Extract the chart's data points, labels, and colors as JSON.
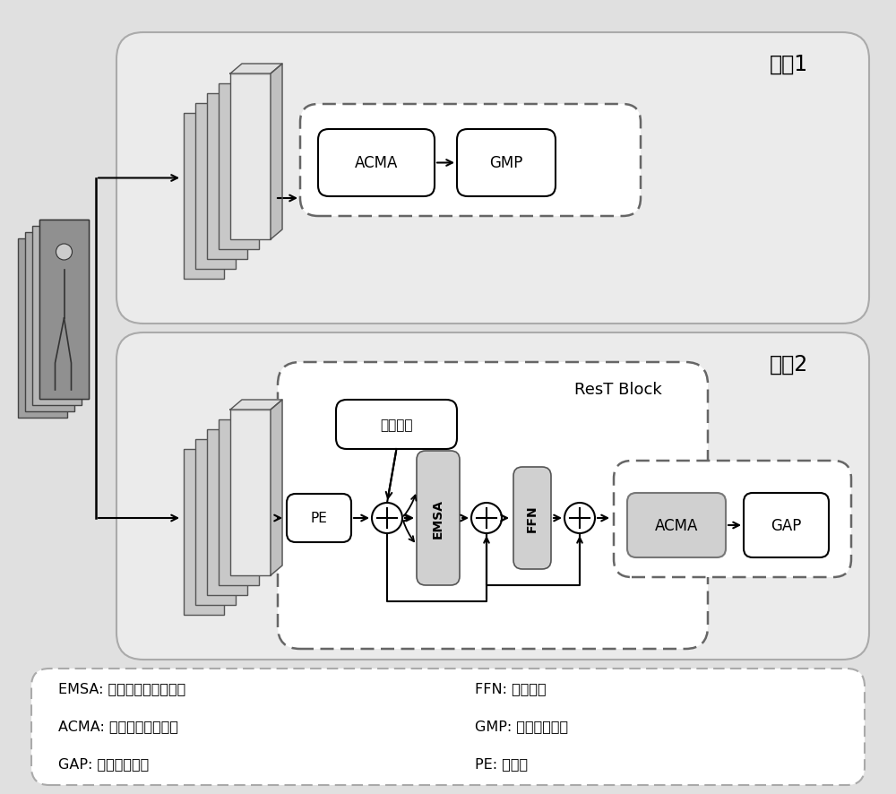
{
  "bg_color": "#e0e0e0",
  "panel_color": "#ebebeb",
  "panel_edge": "#aaaaaa",
  "white": "#ffffff",
  "dashed_edge": "#666666",
  "block_gray": "#cccccc",
  "net1_label": "网的1",
  "net2_label": "网的2",
  "rest_block_label": "ResT Block",
  "pos_enc_label": "位置编码",
  "acma_label": "ACMA",
  "gmp_label": "GMP",
  "gap_label": "GAP",
  "pe_label": "PE",
  "emsa_label": "EMSA",
  "ffn_label": "FFN",
  "legend_lines": [
    "EMSA: 有效的多头自注意力",
    "ACMA: 自适应通道互感知",
    "GAP: 全局平均池化"
  ],
  "legend_right_lines": [
    "FFN: 前馈网络",
    "GMP: 全局最大池化",
    "PE: 块嵌入"
  ],
  "figsize": [
    10.0,
    8.87
  ],
  "dpi": 100
}
